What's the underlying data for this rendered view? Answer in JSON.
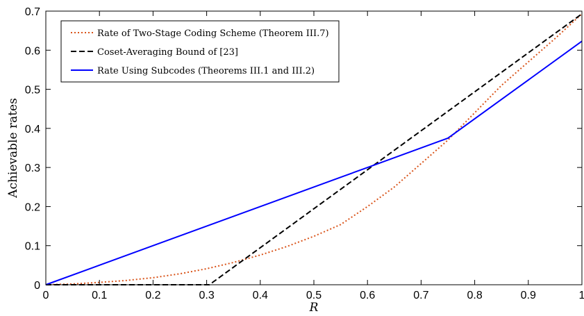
{
  "chart_data": {
    "type": "line",
    "title": "",
    "xlabel": "R",
    "ylabel": "Achievable rates",
    "xlim": [
      0,
      1
    ],
    "ylim": [
      0,
      0.7
    ],
    "xticks": [
      "0",
      "0.1",
      "0.2",
      "0.3",
      "0.4",
      "0.5",
      "0.6",
      "0.7",
      "0.8",
      "0.9",
      "1"
    ],
    "yticks": [
      "0",
      "0.1",
      "0.2",
      "0.3",
      "0.4",
      "0.5",
      "0.6",
      "0.7"
    ],
    "grid": false,
    "legend_position": "top-left",
    "series": [
      {
        "name": "Rate of Two-Stage Coding Scheme (Theorem III.7)",
        "color": "#d95319",
        "style": "dotted",
        "x": [
          0,
          0.05,
          0.1,
          0.15,
          0.2,
          0.25,
          0.3,
          0.35,
          0.4,
          0.45,
          0.5,
          0.55,
          0.6,
          0.65,
          0.7,
          0.75,
          0.8,
          0.85,
          0.9,
          0.95,
          1.0
        ],
        "y": [
          0,
          0.002,
          0.006,
          0.011,
          0.018,
          0.028,
          0.041,
          0.057,
          0.076,
          0.098,
          0.124,
          0.154,
          0.2,
          0.25,
          0.31,
          0.37,
          0.44,
          0.51,
          0.57,
          0.63,
          0.693
        ]
      },
      {
        "name": "Coset-Averaging Bound of [23]",
        "color": "#000000",
        "style": "dashed",
        "x": [
          0,
          0.305,
          1.0
        ],
        "y": [
          0,
          0,
          0.693
        ]
      },
      {
        "name": "Rate Using Subcodes (Theorems III.1 and III.2)",
        "color": "#0000ff",
        "style": "solid",
        "x": [
          0,
          0.6,
          0.75,
          1.0
        ],
        "y": [
          0,
          0.3,
          0.375,
          0.623
        ]
      }
    ]
  }
}
